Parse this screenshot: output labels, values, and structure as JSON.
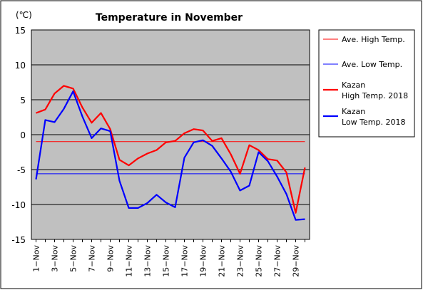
{
  "chart_data": {
    "type": "line",
    "title": "Temperature in November",
    "unit_label": "(℃)",
    "y_ticks": [
      "15",
      "10",
      "5",
      "0",
      "-5",
      "-10",
      "-15"
    ],
    "ylim": [
      -15,
      15
    ],
    "grid": true,
    "x_tick_labels": [
      "1−Nov",
      "3−Nov",
      "5−Nov",
      "7−Nov",
      "9−Nov",
      "11−Nov",
      "13−Nov",
      "15−Nov",
      "17−Nov",
      "19−Nov",
      "21−Nov",
      "23−Nov",
      "25−Nov",
      "27−Nov",
      "29−Nov"
    ],
    "days": [
      1,
      2,
      3,
      4,
      5,
      6,
      7,
      8,
      9,
      10,
      11,
      12,
      13,
      14,
      15,
      16,
      17,
      18,
      19,
      20,
      21,
      22,
      23,
      24,
      25,
      26,
      27,
      28,
      29,
      30
    ],
    "legend_position": "right",
    "series": [
      {
        "name": "Ave. High Temp.",
        "color": "#ff0000",
        "style": "thin",
        "values": [
          -1.0,
          -1.0,
          -1.0,
          -1.0,
          -1.0,
          -1.0,
          -1.0,
          -1.0,
          -1.0,
          -1.0,
          -1.0,
          -1.0,
          -1.0,
          -1.0,
          -1.0,
          -1.0,
          -1.0,
          -1.0,
          -1.0,
          -1.0,
          -1.0,
          -1.0,
          -1.0,
          -1.0,
          -1.0,
          -1.0,
          -1.0,
          -1.0,
          -1.0,
          -1.0
        ]
      },
      {
        "name": "Ave. Low Temp.",
        "color": "#0000ff",
        "style": "thin",
        "values": [
          -5.6,
          -5.6,
          -5.6,
          -5.6,
          -5.6,
          -5.6,
          -5.6,
          -5.6,
          -5.6,
          -5.6,
          -5.6,
          -5.6,
          -5.6,
          -5.6,
          -5.6,
          -5.6,
          -5.6,
          -5.6,
          -5.6,
          -5.6,
          -5.6,
          -5.6,
          -5.6,
          -5.6,
          -5.6,
          -5.6,
          -5.6,
          -5.6,
          -5.6,
          -5.6
        ]
      },
      {
        "name": "Kazan\nHigh Temp. 2018",
        "color": "#ff0000",
        "style": "thick",
        "values": [
          3.1,
          3.6,
          5.9,
          7.0,
          6.6,
          3.9,
          1.7,
          3.1,
          0.8,
          -3.6,
          -4.4,
          -3.4,
          -2.7,
          -2.2,
          -1.1,
          -0.9,
          0.2,
          0.8,
          0.6,
          -0.9,
          -0.5,
          -2.8,
          -5.6,
          -1.5,
          -2.2,
          -3.5,
          -3.7,
          -5.4,
          -11.2,
          -4.7
        ]
      },
      {
        "name": "Kazan\nLow Temp. 2018",
        "color": "#0000ff",
        "style": "thick",
        "values": [
          -6.4,
          2.1,
          1.8,
          3.7,
          6.2,
          2.6,
          -0.5,
          0.9,
          0.5,
          -6.6,
          -10.5,
          -10.5,
          -9.8,
          -8.6,
          -9.7,
          -10.4,
          -3.3,
          -1.1,
          -0.8,
          -1.6,
          -3.4,
          -5.3,
          -8.0,
          -7.3,
          -2.5,
          -3.8,
          -6.0,
          -8.5,
          -12.2,
          -12.1
        ]
      }
    ]
  }
}
